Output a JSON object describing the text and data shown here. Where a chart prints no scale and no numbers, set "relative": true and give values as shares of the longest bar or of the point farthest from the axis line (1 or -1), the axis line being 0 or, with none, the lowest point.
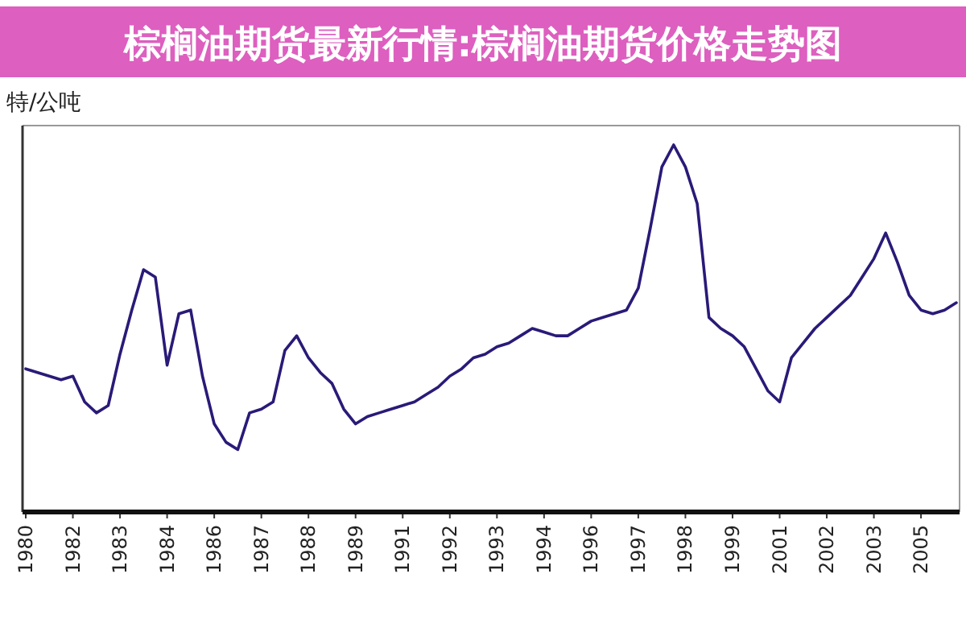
{
  "chart_data": {
    "type": "line",
    "title": "棕榈油期货最新行情:棕榈油期货价格走势图",
    "ylabel": "特/公吨",
    "relative": true,
    "categories": [
      "1980",
      null,
      null,
      null,
      "1982",
      null,
      null,
      null,
      "1983",
      null,
      null,
      null,
      "1984",
      null,
      null,
      null,
      "1986",
      null,
      null,
      null,
      "1987",
      null,
      null,
      null,
      "1988",
      null,
      null,
      null,
      "1989",
      null,
      null,
      null,
      "1991",
      null,
      null,
      null,
      "1992",
      null,
      null,
      null,
      "1993",
      null,
      null,
      null,
      "1994",
      null,
      null,
      null,
      "1996",
      null,
      null,
      null,
      "1997",
      null,
      null,
      null,
      "1998",
      null,
      null,
      null,
      "1999",
      null,
      null,
      null,
      "2001",
      null,
      null,
      null,
      "2002",
      null,
      null,
      null,
      "2003",
      null,
      null,
      null,
      "2005",
      null,
      null,
      null
    ],
    "series": [
      {
        "color": "#2a1a78",
        "values": [
          0.39,
          0.38,
          0.37,
          0.36,
          0.37,
          0.3,
          0.27,
          0.29,
          0.43,
          0.55,
          0.66,
          0.64,
          0.4,
          0.54,
          0.55,
          0.37,
          0.24,
          0.19,
          0.17,
          0.27,
          0.28,
          0.3,
          0.44,
          0.48,
          0.42,
          0.38,
          0.35,
          0.28,
          0.24,
          0.26,
          0.27,
          0.28,
          0.29,
          0.3,
          0.32,
          0.34,
          0.37,
          0.39,
          0.42,
          0.43,
          0.45,
          0.46,
          0.48,
          0.5,
          0.49,
          0.48,
          0.48,
          0.5,
          0.52,
          0.53,
          0.54,
          0.55,
          0.61,
          0.77,
          0.94,
          1,
          0.94,
          0.84,
          0.53,
          0.5,
          0.48,
          0.45,
          0.39,
          0.33,
          0.3,
          0.42,
          0.46,
          0.5,
          0.53,
          0.56,
          0.59,
          0.64,
          0.69,
          0.76,
          0.68,
          0.59,
          0.55,
          0.54,
          0.55,
          0.57
        ]
      }
    ]
  }
}
